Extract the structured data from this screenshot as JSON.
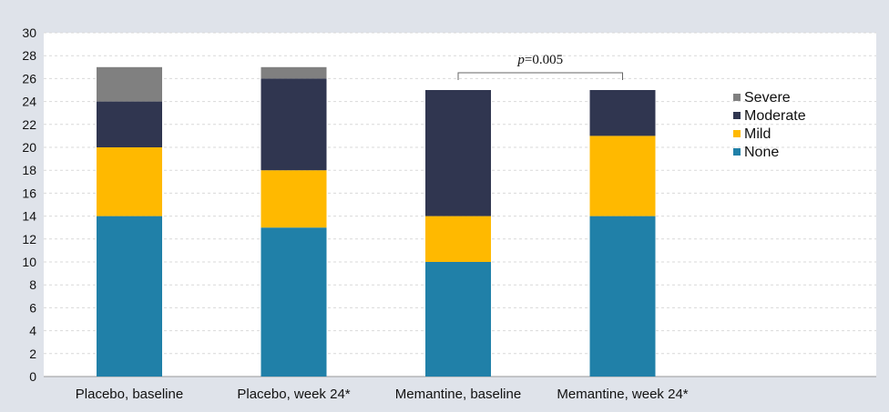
{
  "chart_data": {
    "type": "bar",
    "stacked": true,
    "categories": [
      "Placebo, baseline",
      "Placebo, week 24*",
      "Memantine, baseline",
      "Memantine, week 24*"
    ],
    "series": [
      {
        "name": "None",
        "color": "#2080a8",
        "values": [
          14,
          13,
          10,
          14
        ]
      },
      {
        "name": "Mild",
        "color": "#ffb900",
        "values": [
          6,
          5,
          4,
          7
        ]
      },
      {
        "name": "Moderate",
        "color": "#303650",
        "values": [
          4,
          8,
          11,
          4
        ]
      },
      {
        "name": "Severe",
        "color": "#808080",
        "values": [
          3,
          1,
          0,
          0
        ]
      }
    ],
    "ylim": [
      0,
      30
    ],
    "yticks": [
      0,
      2,
      4,
      6,
      8,
      10,
      12,
      14,
      16,
      18,
      20,
      22,
      24,
      26,
      28,
      30
    ],
    "grid": true,
    "legend_position": "right",
    "legend_order": [
      "Severe",
      "Moderate",
      "Mild",
      "None"
    ],
    "annotations": [
      {
        "p_italic": "p",
        "text": "=0.005",
        "from_category": "Memantine, baseline",
        "to_category": "Memantine, week 24*"
      }
    ],
    "title": "",
    "xlabel": "",
    "ylabel": ""
  }
}
